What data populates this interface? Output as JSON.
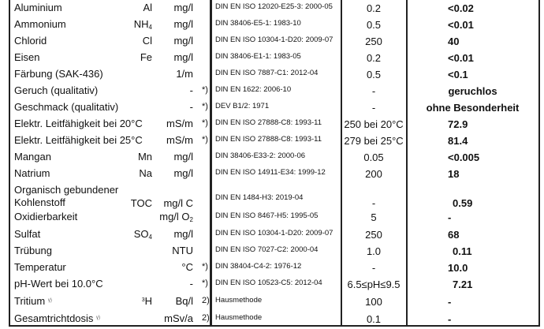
{
  "rows": [
    {
      "name": "Aluminium",
      "symbol": "Al",
      "unit": "mg/l",
      "note": "",
      "method": "DIN EN ISO 12020-E25-3: 2000-05",
      "limit": "0.2",
      "result": "<0.02"
    },
    {
      "name": "Ammonium",
      "symbol": "NH",
      "symbol_sub": "4",
      "unit": "mg/l",
      "note": "",
      "method": "DIN 38406-E5-1: 1983-10",
      "limit": "0.5",
      "result": "<0.01"
    },
    {
      "name": "Chlorid",
      "symbol": "Cl",
      "unit": "mg/l",
      "note": "",
      "method": "DIN EN ISO 10304-1-D20: 2009-07",
      "limit": "250",
      "result": "40"
    },
    {
      "name": "Eisen",
      "symbol": "Fe",
      "unit": "mg/l",
      "note": "",
      "method": "DIN 38406-E1-1: 1983-05",
      "limit": "0.2",
      "result": "<0.01"
    },
    {
      "name": "Färbung (SAK-436)",
      "symbol": "",
      "unit": "1/m",
      "note": "",
      "method": "DIN EN ISO 7887-C1: 2012-04",
      "limit": "0.5",
      "result": "<0.1"
    },
    {
      "name": "Geruch (qualitativ)",
      "symbol": "",
      "unit": "-",
      "note": "*)",
      "method": "DIN EN 1622: 2006-10",
      "limit": "-",
      "result": "geruchlos"
    },
    {
      "name": "Geschmack (qualitativ)",
      "symbol": "",
      "unit": "-",
      "note": "*)",
      "method": "DEV B1/2: 1971",
      "limit": "-",
      "result": "ohne Besonderheit"
    },
    {
      "name": "Elektr. Leitfähigkeit bei 20°C",
      "symbol": "",
      "unit": "mS/m",
      "note": "*)",
      "method": "DIN EN ISO 27888-C8: 1993-11",
      "limit": "250 bei 20°C",
      "result": "72.9"
    },
    {
      "name": "Elektr. Leitfähigkeit bei 25°C",
      "symbol": "",
      "unit": "mS/m",
      "note": "*)",
      "method": "DIN EN ISO 27888-C8: 1993-11",
      "limit": "279 bei 25°C",
      "result": "81.4"
    },
    {
      "name": "Mangan",
      "symbol": "Mn",
      "unit": "mg/l",
      "note": "",
      "method": "DIN 38406-E33-2: 2000-06",
      "limit": "0.05",
      "result": "<0.005"
    },
    {
      "name": "Natrium",
      "symbol": "Na",
      "unit": "mg/l",
      "note": "",
      "method": "DIN EN ISO 14911-E34: 1999-12",
      "limit": "200",
      "result": "18"
    },
    {
      "name": "Organisch gebundener",
      "name2": "Kohlenstoff",
      "symbol": "TOC",
      "unit": "mg/l C",
      "note": "",
      "method": "DIN EN 1484-H3: 2019-04",
      "limit": "-",
      "result": "0.59"
    },
    {
      "name": "Oxidierbarkeit",
      "symbol": "",
      "unit": "mg/l O",
      "unit_sub": "2",
      "note": "",
      "method": "DIN EN ISO 8467-H5: 1995-05",
      "limit": "5",
      "result": "-"
    },
    {
      "name": "Sulfat",
      "symbol": "SO",
      "symbol_sub": "4",
      "unit": "mg/l",
      "note": "",
      "method": "DIN EN ISO 10304-1-D20: 2009-07",
      "limit": "250",
      "result": "68"
    },
    {
      "name": "Trübung",
      "symbol": "",
      "unit": "NTU",
      "note": "",
      "method": "DIN EN ISO 7027-C2: 2000-04",
      "limit": "1.0",
      "result": "0.11"
    },
    {
      "name": "Temperatur",
      "symbol": "",
      "unit": "°C",
      "note": "*)",
      "method": "DIN 38404-C4-2: 1976-12",
      "limit": "-",
      "result": "10.0"
    },
    {
      "name": "pH-Wert bei 10.0°C",
      "symbol": "",
      "unit": "-",
      "note": "*)",
      "method": "DIN EN ISO 10523-C5: 2012-04",
      "limit": "6.5≤pH≤9.5",
      "result": "7.21"
    },
    {
      "name": "Tritium",
      "name_mark": "γ)",
      "symbol": "H",
      "symbol_sup": "3",
      "unit": "Bq/l",
      "note": "2)",
      "method": "Hausmethode",
      "limit": "100",
      "result": "-"
    },
    {
      "name": "Gesamtrichtdosis",
      "name_mark": "γ)",
      "symbol": "",
      "unit": "mSv/a",
      "note": "2)",
      "method": "Hausmethode",
      "limit": "0.1",
      "result": "-"
    }
  ]
}
